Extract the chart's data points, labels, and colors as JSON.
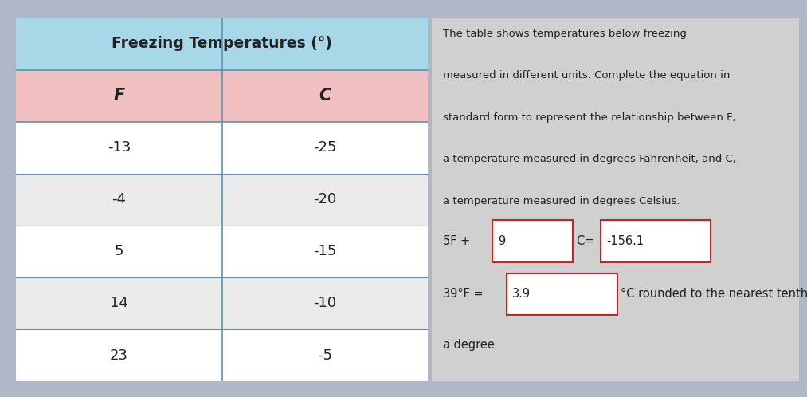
{
  "title": "Freezing Temperatures (°)",
  "headers": [
    "F",
    "C"
  ],
  "rows": [
    [
      "-13",
      "-25"
    ],
    [
      "-4",
      "-20"
    ],
    [
      "5",
      "-15"
    ],
    [
      "14",
      "-10"
    ],
    [
      "23",
      "-5"
    ]
  ],
  "title_bg": "#a8d8e8",
  "header_bg": "#f2c0c0",
  "row_bg_white": "#ffffff",
  "row_bg_gray": "#ebebeb",
  "border_color": "#6090b0",
  "right_panel_bg": "#d0d0d0",
  "top_bar_bg": "#b0b8c8",
  "description_text_line1": "The table shows temperatures below freezing",
  "description_text_line2": "measured in different units. Complete the equation in",
  "description_text_line3": "standard form to represent the relationship between F,",
  "description_text_line4": "a temperature measured in degrees Fahrenheit, and C,",
  "description_text_line5": "a temperature measured in degrees Celsius.",
  "eq1_pre": "5F + ",
  "eq1_box1_text": "9",
  "eq1_mid": "C= ",
  "eq1_box2_text": "-156.1",
  "eq2_pre": "39°F = ",
  "eq2_box_text": "3.9",
  "eq2_suf": "°C rounded to the nearest tenth of",
  "eq2_suf2": "a degree",
  "input_box_fill": "#ffffff",
  "input_box_edge": "#cc2222",
  "text_color": "#222222",
  "figure_bg": "#b0b8c8",
  "white_panel_bg": "#ffffff"
}
